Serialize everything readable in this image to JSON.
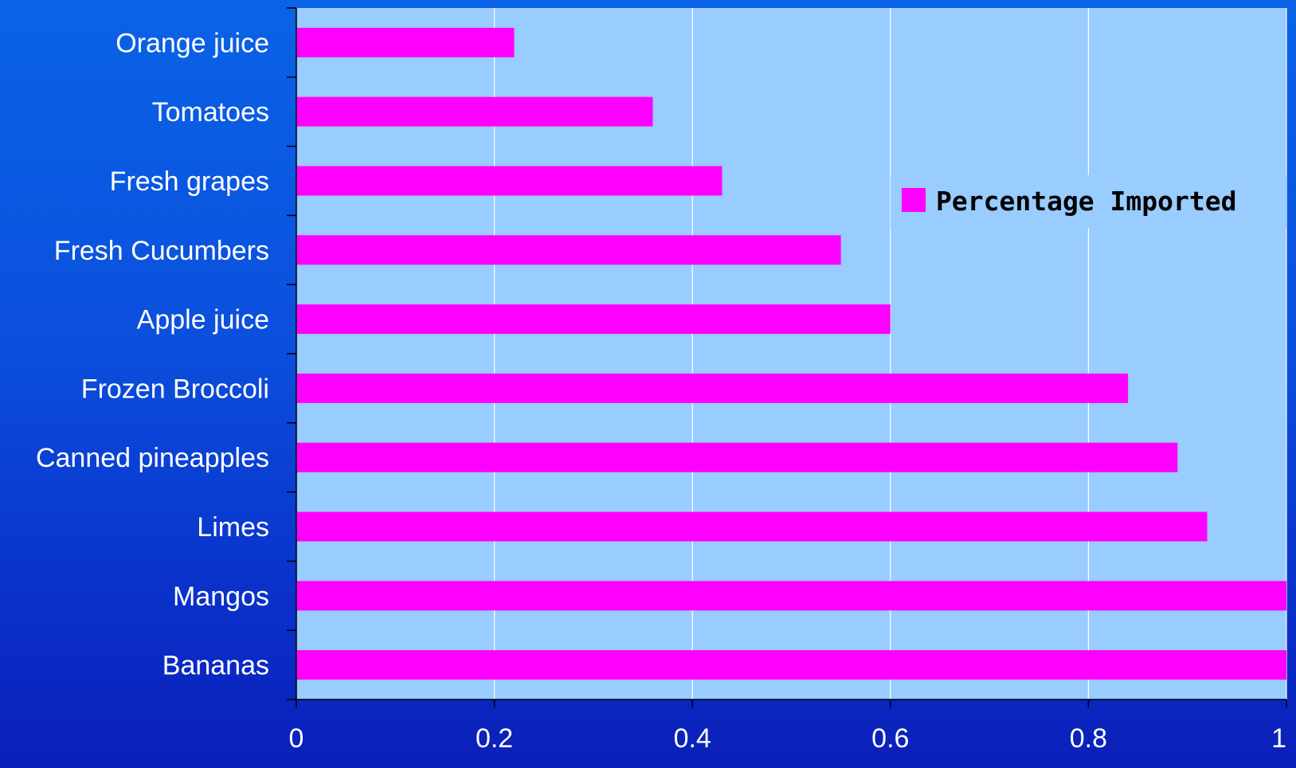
{
  "chart_data": {
    "type": "bar",
    "orientation": "horizontal",
    "categories": [
      "Orange juice",
      "Tomatoes",
      "Fresh grapes",
      "Fresh Cucumbers",
      "Apple juice",
      "Frozen Broccoli",
      "Canned pineapples",
      "Limes",
      "Mangos",
      "Bananas"
    ],
    "series": [
      {
        "name": "Percentage Imported",
        "values": [
          0.22,
          0.36,
          0.43,
          0.55,
          0.6,
          0.84,
          0.89,
          0.92,
          1.0,
          1.0
        ]
      }
    ],
    "xlim": [
      0,
      1
    ],
    "xticks": [
      "0",
      "0.2",
      "0.4",
      "0.6",
      "0.8",
      "1"
    ],
    "xtick_values": [
      0,
      0.2,
      0.4,
      0.6,
      0.8,
      1
    ],
    "grid": true,
    "legend_position": "right",
    "colors": {
      "bar": "#ff00ff",
      "plot_background": "#99ccff",
      "page_background": "#0a4fdd",
      "gridline": "#ffffff",
      "text": "#ffffff"
    }
  }
}
